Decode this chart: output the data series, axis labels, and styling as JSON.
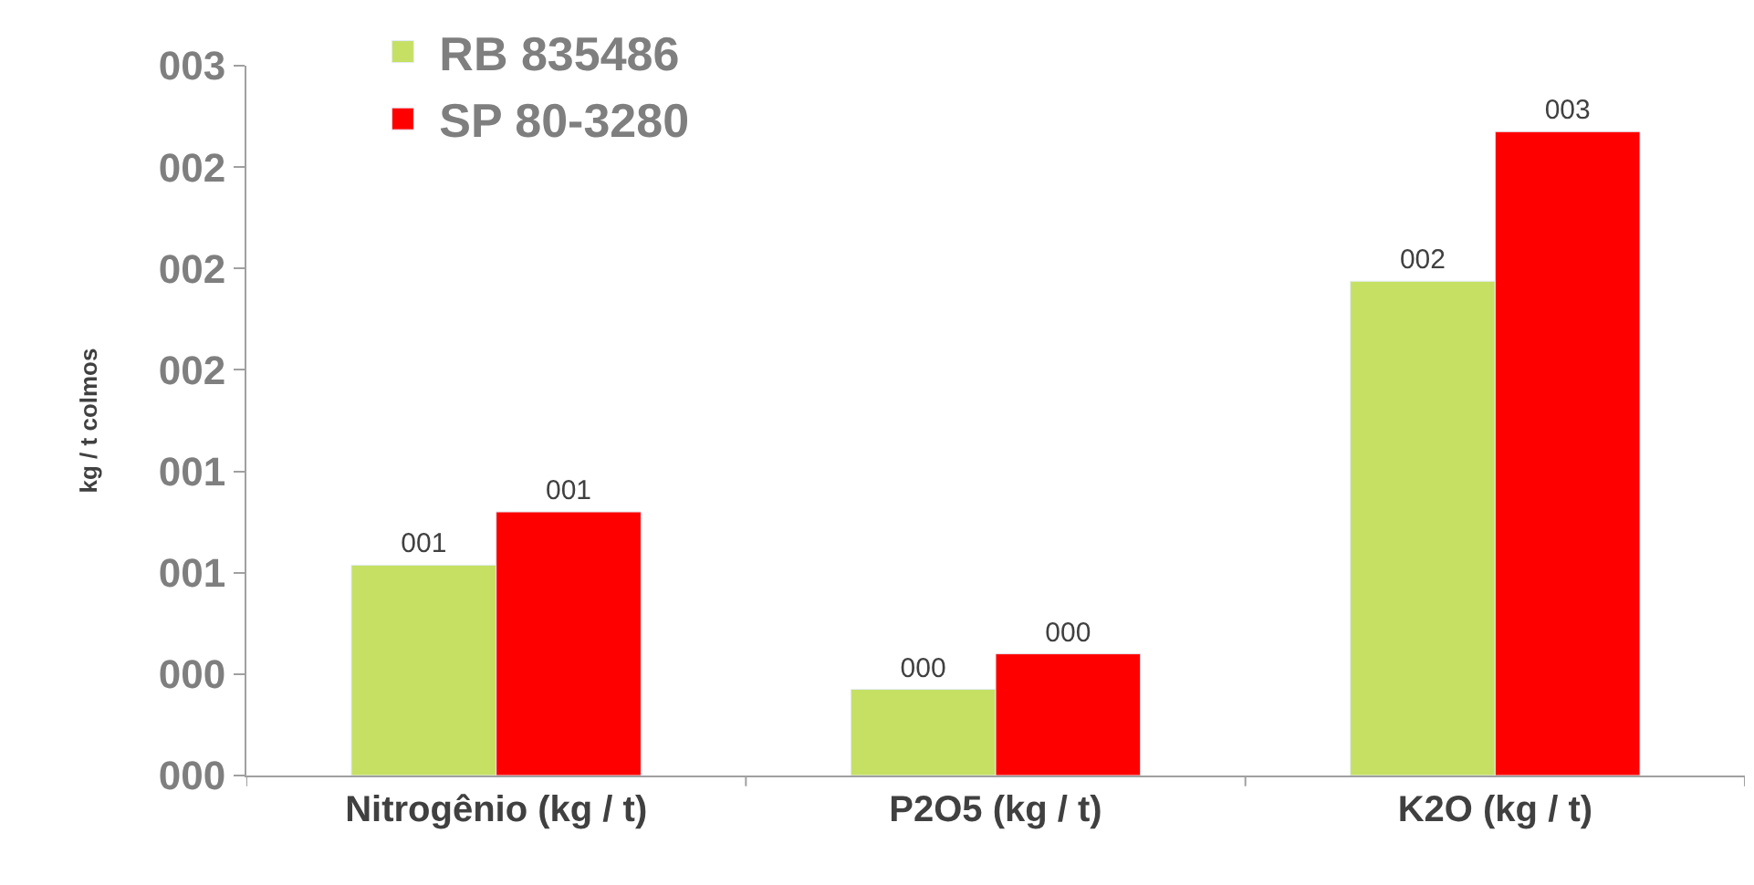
{
  "chart_data": {
    "type": "bar",
    "ylabel": "kg / t colmos",
    "categories": [
      "Nitrogênio (kg / t)",
      "P2O5 (kg / t)",
      "K2O (kg / t)"
    ],
    "series": [
      {
        "name": "RB 835486",
        "color": "#c6e064",
        "values": [
          0.83,
          0.34,
          1.95
        ],
        "value_labels": [
          "001",
          "000",
          "002"
        ]
      },
      {
        "name": "SP 80-3280",
        "color": "#ff0000",
        "values": [
          1.04,
          0.48,
          2.54
        ],
        "value_labels": [
          "001",
          "000",
          "003"
        ]
      }
    ],
    "ylim": [
      0,
      2.8
    ],
    "yticks": [
      {
        "value": 0,
        "label": "000"
      },
      {
        "value": 0.4,
        "label": "000"
      },
      {
        "value": 0.8,
        "label": "001"
      },
      {
        "value": 1.2,
        "label": "001"
      },
      {
        "value": 1.6,
        "label": "002"
      },
      {
        "value": 2.0,
        "label": "002"
      },
      {
        "value": 2.4,
        "label": "002"
      },
      {
        "value": 2.8,
        "label": "003"
      }
    ],
    "legend": "top left"
  }
}
